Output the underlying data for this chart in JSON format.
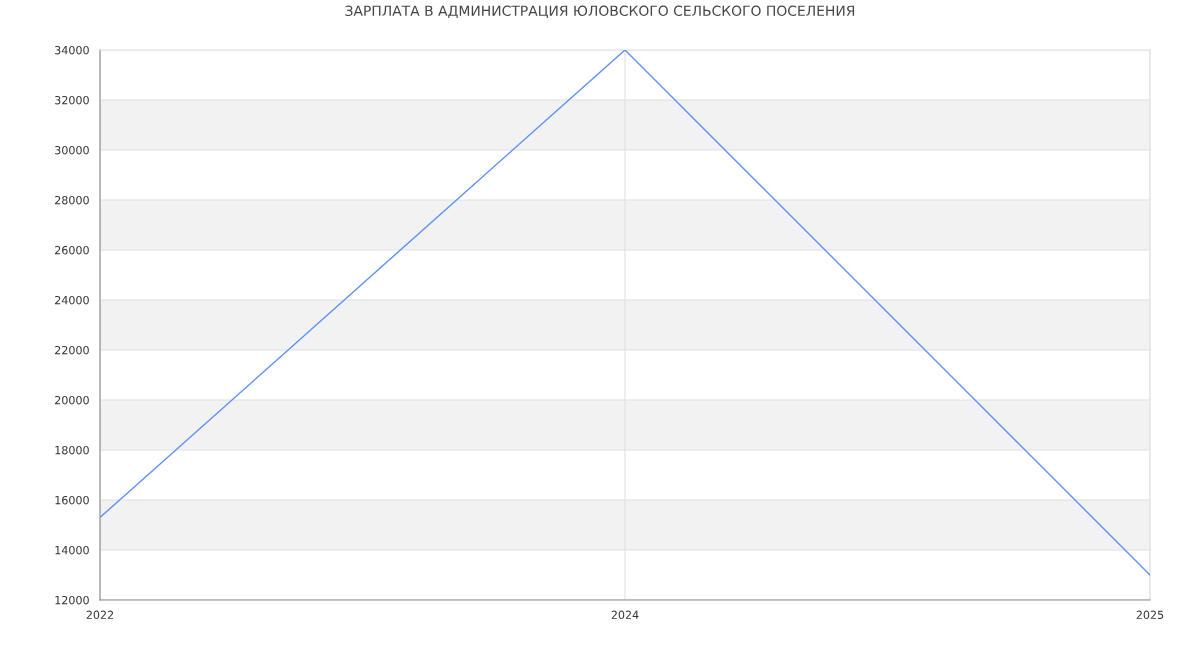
{
  "chart_data": {
    "type": "line",
    "title": "ЗАРПЛАТА В АДМИНИСТРАЦИЯ ЮЛОВСКОГО СЕЛЬСКОГО ПОСЕЛЕНИЯ",
    "categories": [
      "2022",
      "2024",
      "2025"
    ],
    "series": [
      {
        "color": "#5b8ff9",
        "values": [
          15300,
          34000,
          13000
        ]
      }
    ],
    "ylim": [
      12000,
      34000
    ],
    "yticks": [
      12000,
      14000,
      16000,
      18000,
      20000,
      22000,
      24000,
      26000,
      28000,
      30000,
      32000,
      34000
    ],
    "bands": [
      {
        "axis": "y",
        "from": 14000,
        "to": 16000,
        "color": "#f2f2f2"
      },
      {
        "axis": "y",
        "from": 18000,
        "to": 20000,
        "color": "#f2f2f2"
      },
      {
        "axis": "y",
        "from": 22000,
        "to": 24000,
        "color": "#f2f2f2"
      },
      {
        "axis": "y",
        "from": 26000,
        "to": 28000,
        "color": "#f2f2f2"
      },
      {
        "axis": "y",
        "from": 30000,
        "to": 32000,
        "color": "#f2f2f2"
      }
    ],
    "grid": true,
    "marker": "none",
    "line_style": "solid"
  }
}
